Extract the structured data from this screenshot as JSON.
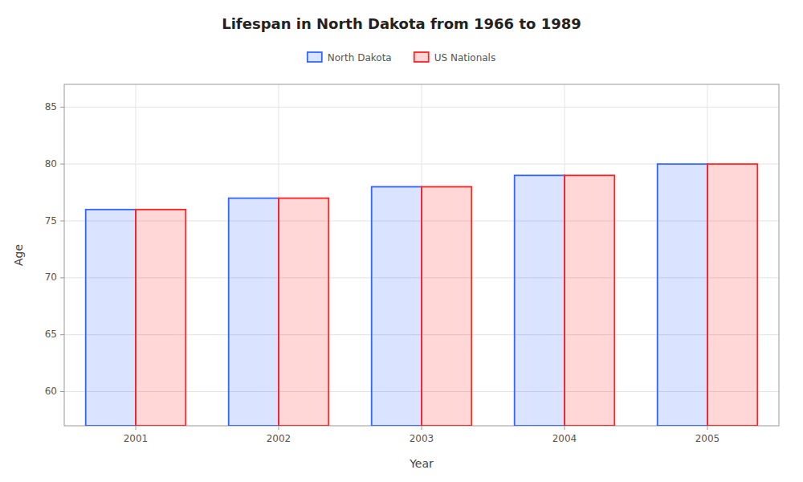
{
  "chart_data": {
    "type": "bar",
    "title": "Lifespan in North Dakota from 1966 to 1989",
    "x_label": "Year",
    "y_label": "Age",
    "categories": [
      "2001",
      "2002",
      "2003",
      "2004",
      "2005"
    ],
    "series": [
      {
        "name": "North Dakota",
        "color": "#3366ff",
        "values": [
          76,
          77,
          78,
          79,
          80
        ]
      },
      {
        "name": "US Nationals",
        "color": "#ff2222",
        "values": [
          76,
          77,
          78,
          79,
          80
        ]
      }
    ],
    "ylim": [
      57,
      87
    ],
    "yticks": [
      60,
      65,
      70,
      75,
      80,
      85
    ],
    "grid": true,
    "legend": "top"
  }
}
